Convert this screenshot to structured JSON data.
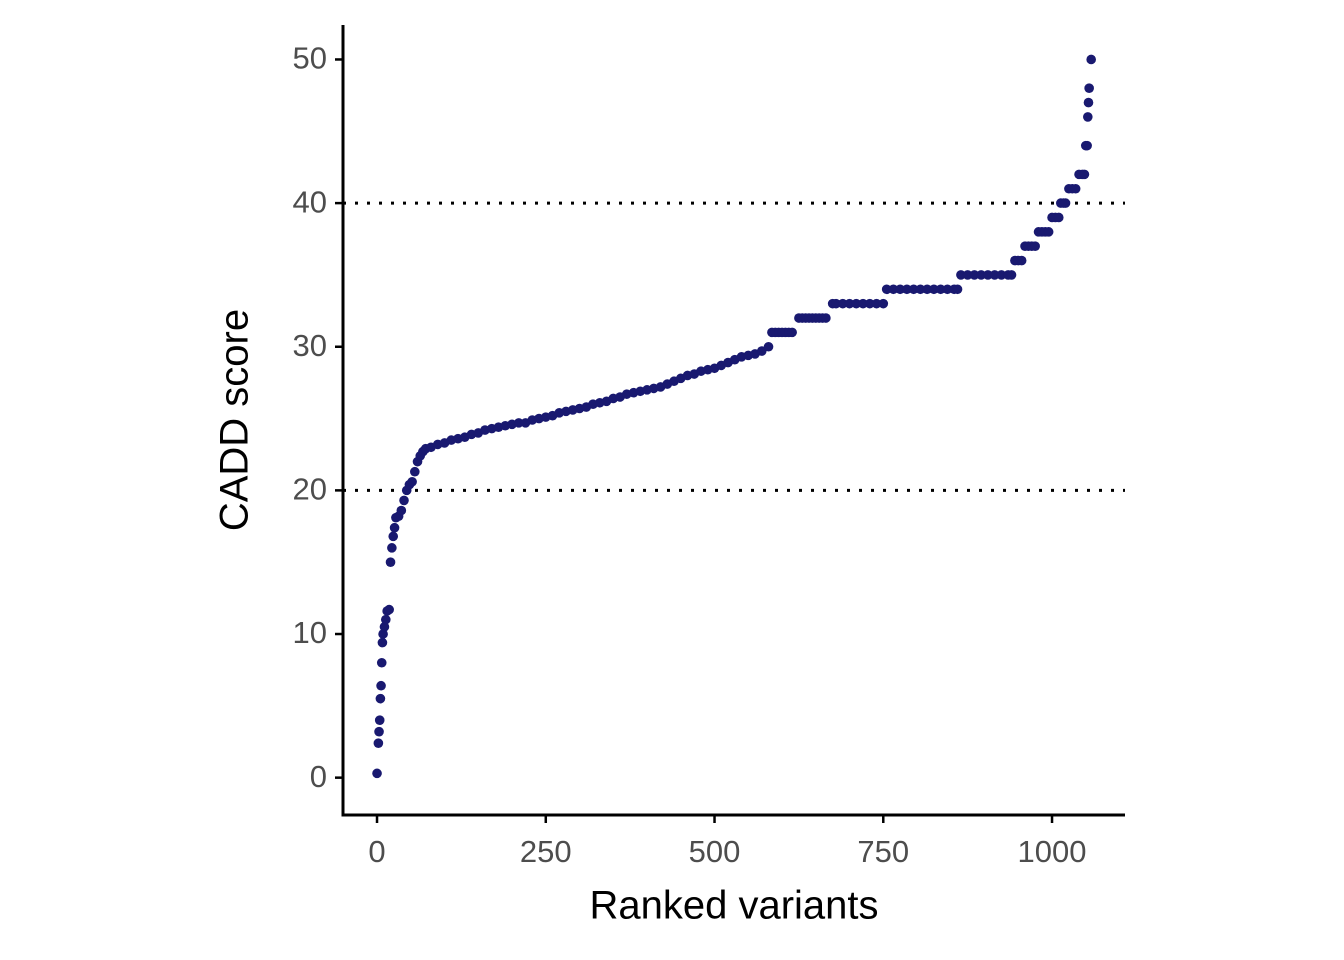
{
  "chart_data": {
    "type": "scatter",
    "x_label": "Ranked variants",
    "y_label": "CADD score",
    "color": "#191970",
    "xlim": [
      -50.4,
      1108.1
    ],
    "ylim": [
      -2.6,
      52.4
    ],
    "xticks": [
      0,
      250,
      500,
      750,
      1000
    ],
    "yticks": [
      0,
      10,
      20,
      30,
      40,
      50
    ],
    "hlines": [
      20,
      40
    ],
    "x": [
      0,
      2,
      3,
      4,
      5,
      6,
      7,
      8,
      9,
      11,
      13,
      15,
      18,
      20,
      22,
      24,
      26,
      28,
      32,
      36,
      40,
      44,
      48,
      52,
      56,
      60,
      64,
      68,
      72,
      80,
      90,
      100,
      110,
      120,
      130,
      140,
      150,
      160,
      170,
      180,
      190,
      200,
      210,
      220,
      230,
      240,
      250,
      260,
      270,
      280,
      290,
      300,
      310,
      320,
      330,
      340,
      350,
      360,
      370,
      380,
      390,
      400,
      410,
      420,
      430,
      440,
      450,
      460,
      470,
      480,
      490,
      500,
      510,
      520,
      530,
      540,
      550,
      560,
      570,
      580,
      585,
      590,
      595,
      600,
      605,
      610,
      615,
      625,
      630,
      635,
      640,
      645,
      650,
      655,
      660,
      665,
      675,
      680,
      690,
      700,
      710,
      720,
      730,
      740,
      750,
      755,
      765,
      775,
      785,
      795,
      805,
      815,
      825,
      835,
      845,
      855,
      860,
      865,
      875,
      885,
      895,
      905,
      915,
      925,
      935,
      940,
      945,
      950,
      955,
      960,
      965,
      970,
      975,
      980,
      985,
      990,
      995,
      1000,
      1005,
      1010,
      1013,
      1017,
      1020,
      1025,
      1030,
      1035,
      1040,
      1045,
      1048,
      1050,
      1052,
      1053,
      1054,
      1055,
      1058
    ],
    "y": [
      0.3,
      2.4,
      3.2,
      4,
      5.5,
      6.4,
      8,
      9.4,
      10,
      10.5,
      11,
      11.6,
      11.7,
      15,
      16,
      16.8,
      17.4,
      18.1,
      18.2,
      18.6,
      19.3,
      20,
      20.4,
      20.6,
      21.3,
      22,
      22.4,
      22.7,
      22.9,
      23,
      23.2,
      23.3,
      23.5,
      23.6,
      23.7,
      23.9,
      24,
      24.2,
      24.3,
      24.4,
      24.5,
      24.6,
      24.7,
      24.7,
      24.9,
      25,
      25.1,
      25.2,
      25.4,
      25.5,
      25.6,
      25.7,
      25.8,
      26,
      26.1,
      26.2,
      26.4,
      26.5,
      26.7,
      26.8,
      26.9,
      27,
      27.1,
      27.2,
      27.4,
      27.6,
      27.8,
      28,
      28.1,
      28.3,
      28.4,
      28.5,
      28.7,
      28.9,
      29.1,
      29.3,
      29.4,
      29.5,
      29.7,
      30,
      31,
      31,
      31,
      31,
      31,
      31,
      31,
      32,
      32,
      32,
      32,
      32,
      32,
      32,
      32,
      32,
      33,
      33,
      33,
      33,
      33,
      33,
      33,
      33,
      33,
      34,
      34,
      34,
      34,
      34,
      34,
      34,
      34,
      34,
      34,
      34,
      34,
      35,
      35,
      35,
      35,
      35,
      35,
      35,
      35,
      35,
      36,
      36,
      36,
      37,
      37,
      37,
      37,
      38,
      38,
      38,
      38,
      39,
      39,
      39,
      40,
      40,
      40,
      41,
      41,
      41,
      42,
      42,
      42,
      44,
      44,
      46,
      47,
      48,
      50
    ]
  }
}
